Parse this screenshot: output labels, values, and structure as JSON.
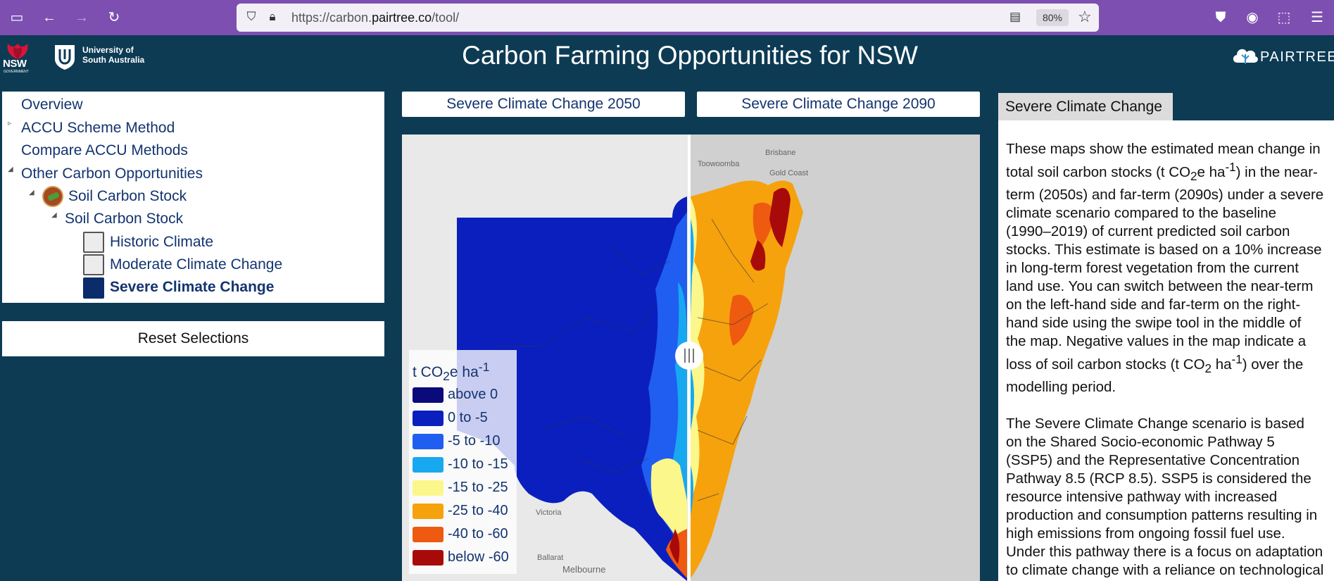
{
  "browser": {
    "url_prefix": "https://carbon.",
    "url_domain": "pairtree.co",
    "url_suffix": "/tool/",
    "zoom": "80%",
    "icons": [
      "sidebar-icon",
      "back-icon",
      "forward-icon",
      "reload-icon",
      "shield-icon",
      "lock-icon",
      "reader-view-icon",
      "star-icon",
      "pocket-icon",
      "account-icon",
      "extensions-icon",
      "menu-icon"
    ]
  },
  "header": {
    "title": "Carbon Farming Opportunities for NSW",
    "nsw_logo": "NSW",
    "nsw_sub": "GOVERNMENT",
    "unisa_line1": "University of",
    "unisa_line2": "South Australia",
    "partner": "PAIRTREE"
  },
  "tree": {
    "overview": "Overview",
    "accu_method": "ACCU Scheme Method",
    "compare": "Compare ACCU Methods",
    "other": "Other Carbon Opportunities",
    "soil_group": "Soil Carbon Stock",
    "soil_sub": "Soil Carbon Stock",
    "historic": "Historic Climate",
    "moderate": "Moderate Climate Change",
    "severe": "Severe Climate Change"
  },
  "reset_label": "Reset Selections",
  "tabs": {
    "left": "Severe Climate Change 2050",
    "right": "Severe Climate Change 2090"
  },
  "map": {
    "labels": {
      "brisbane": "Brisbane",
      "toowoomba": "Toowoomba",
      "gold_coast": "Gold Coast",
      "victoria": "Victoria",
      "ballarat": "Ballarat",
      "melbourne": "Melbourne"
    },
    "legend": {
      "title_pre": "t CO",
      "title_sub": "2",
      "title_mid": "e ha",
      "title_sup": "-1",
      "items": [
        {
          "label": "above 0",
          "color": "#0a0a7a"
        },
        {
          "label": "0 to -5",
          "color": "#0b1fbf"
        },
        {
          "label": "-5 to -10",
          "color": "#1f5ef0"
        },
        {
          "label": "-10 to -15",
          "color": "#18a8f0"
        },
        {
          "label": "-15 to -25",
          "color": "#fbf78a"
        },
        {
          "label": "-25 to -40",
          "color": "#f6a20d"
        },
        {
          "label": "-40 to -60",
          "color": "#ee5a10"
        },
        {
          "label": "below -60",
          "color": "#a80a0a"
        }
      ]
    }
  },
  "info": {
    "tab": "Severe Climate Change",
    "p1_a": "These maps show the estimated mean change in total soil carbon stocks (t CO",
    "p1_sub": "2",
    "p1_b": "e ha",
    "p1_sup": "-1",
    "p1_c": ") in the near-term (2050s) and far-term (2090s) under a severe climate scenario compared to the baseline (1990–2019) of current predicted soil carbon stocks. This estimate is based on a 10% increase in long-term forest vegetation from the current land use. You can switch between the near-term on the left-hand side and far-term on the right-hand side using the swipe tool in the middle of the map. Negative values in the map indicate a loss of soil carbon stocks (t CO",
    "p1_sub2": "2",
    "p1_d": " ha",
    "p1_sup2": "-1",
    "p1_e": ") over the modelling period.",
    "p2": "The Severe Climate Change scenario is based on the Shared Socio-economic Pathway 5 (SSP5) and the Representative Concentration Pathway 8.5 (RCP 8.5). SSP5 is considered the resource intensive pathway with increased production and consumption patterns resulting in high emissions from ongoing fossil fuel use. Under this pathway there is a focus on adaptation to climate change with a reliance on technological solutions and increased"
  }
}
